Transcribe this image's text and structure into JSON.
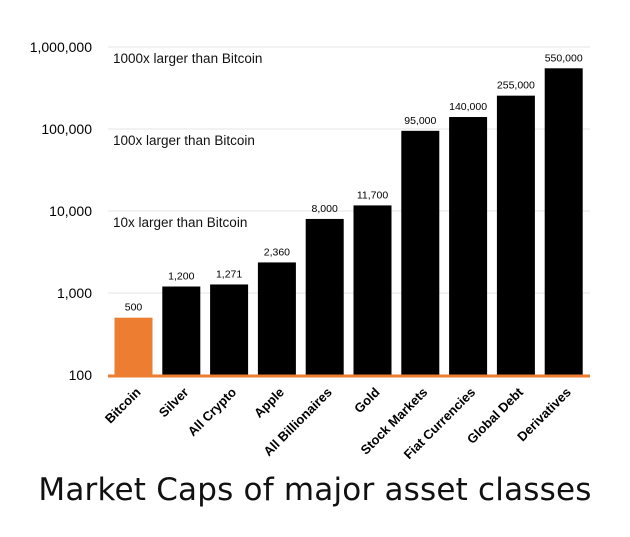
{
  "chart_data": {
    "type": "bar",
    "title": "Market Caps of major asset classes",
    "categories": [
      "Bitcoin",
      "Silver",
      "All Crypto",
      "Apple",
      "All Billionaires",
      "Gold",
      "Stock Markets",
      "Fiat Currencies",
      "Global Debt",
      "Derivatives"
    ],
    "values": [
      500,
      1200,
      1271,
      2360,
      8000,
      11700,
      95000,
      140000,
      255000,
      550000
    ],
    "value_labels": [
      "500",
      "1,200",
      "1,271",
      "2,360",
      "8,000",
      "11,700",
      "95,000",
      "140,000",
      "255,000",
      "550,000"
    ],
    "y_scale": "log",
    "ylim": [
      100,
      1000000
    ],
    "y_ticks": [
      100,
      1000,
      10000,
      100000,
      1000000
    ],
    "y_tick_labels": [
      "100",
      "1,000",
      "10,000",
      "100,000",
      "1,000,000"
    ],
    "grid": true,
    "annotations": [
      "10x larger than Bitcoin",
      "100x larger than Bitcoin",
      "1000x larger than Bitcoin"
    ],
    "annotation_levels": [
      10000,
      100000,
      1000000
    ],
    "colors": {
      "highlight": "#ED7D31",
      "bar": "#000000",
      "axis": "#ED7D31",
      "grid": "#E6E6E6"
    },
    "highlight_category": "Bitcoin"
  }
}
